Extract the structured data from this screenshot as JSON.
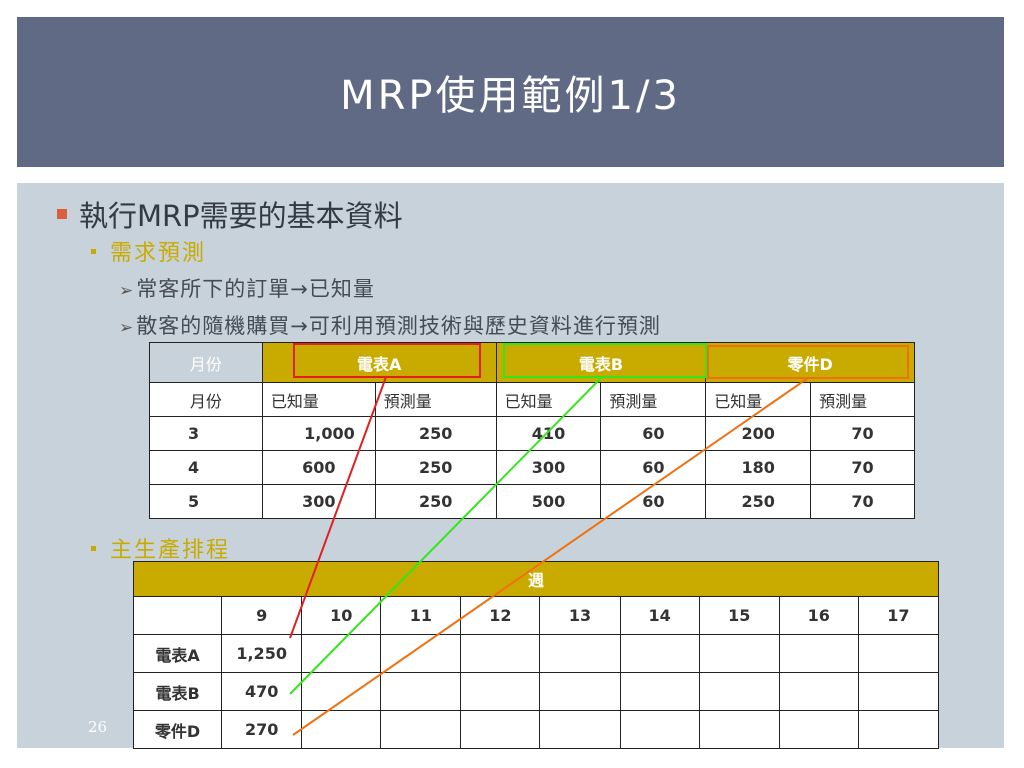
{
  "title": "MRP使用範例1/3",
  "bullets": {
    "level1": "執行MRP需要的基本資料",
    "demand": "需求預測",
    "known": "常客所下的訂單→已知量",
    "forecast": "散客的隨機購買→可利用預測技術與歷史資料進行預測",
    "mps": "主生產排程"
  },
  "table1": {
    "header": [
      "月份",
      "電表A",
      "電表B",
      "零件D"
    ],
    "subheader": [
      "月份",
      "已知量",
      "預測量",
      "已知量",
      "預測量",
      "已知量",
      "預測量"
    ],
    "rows": [
      [
        "3",
        "1,000",
        "250",
        "410",
        "60",
        "200",
        "70"
      ],
      [
        "4",
        "600",
        "250",
        "300",
        "60",
        "180",
        "70"
      ],
      [
        "5",
        "300",
        "250",
        "500",
        "60",
        "250",
        "70"
      ]
    ]
  },
  "table2": {
    "header": "週",
    "weeks": [
      "9",
      "10",
      "11",
      "12",
      "13",
      "14",
      "15",
      "16",
      "17"
    ],
    "rows": [
      {
        "label": "電表A",
        "value": "1,250"
      },
      {
        "label": "電表B",
        "value": "470"
      },
      {
        "label": "零件D",
        "value": "270"
      }
    ]
  },
  "slide_number": "26",
  "colors": {
    "title_bg": "#616a84",
    "content_bg": "#c8d2da",
    "gold": "#c9ab00",
    "red": "#e02020",
    "green": "#33e61a",
    "orange": "#f07010"
  }
}
